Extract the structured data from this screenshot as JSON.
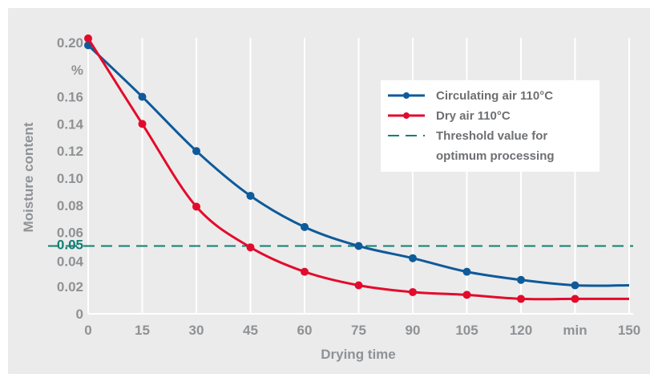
{
  "colors": {
    "background": "#ebebeb",
    "grid": "#ffffff",
    "circulating": "#0f5a9a",
    "dry": "#e30b2c",
    "threshold": "#0f7f72",
    "tick": "#8f9295"
  },
  "chart_data": {
    "type": "line",
    "xlabel": "Drying time",
    "ylabel": "Moisture content",
    "xlim": [
      0,
      150
    ],
    "ylim": [
      0,
      0.2
    ],
    "x_ticks": [
      0,
      15,
      30,
      45,
      60,
      75,
      90,
      105,
      120,
      135,
      150
    ],
    "x_tick_labels": [
      "0",
      "15",
      "30",
      "45",
      "60",
      "75",
      "90",
      "105",
      "120",
      "min",
      "150"
    ],
    "y_ticks": [
      0,
      0.02,
      0.04,
      0.05,
      0.06,
      0.08,
      0.1,
      0.12,
      0.14,
      0.16,
      0.18,
      0.2
    ],
    "y_tick_labels": [
      "0",
      "0.02",
      "0.04",
      "0.05",
      "0.06",
      "0.08",
      "0.10",
      "0.12",
      "0.14",
      "0.16",
      "%",
      "0.20"
    ],
    "highlighted_y_tick": "0.05",
    "grid": "vertical",
    "legend_position": "top-right",
    "series": [
      {
        "name": "Circulating air 110°C",
        "color": "#0f5a9a",
        "x": [
          0,
          15,
          30,
          45,
          60,
          75,
          90,
          105,
          120,
          135,
          150
        ],
        "y": [
          0.198,
          0.16,
          0.12,
          0.087,
          0.064,
          0.05,
          0.041,
          0.031,
          0.025,
          0.021,
          0.021
        ]
      },
      {
        "name": "Dry air 110°C",
        "color": "#e30b2c",
        "x": [
          0,
          15,
          30,
          45,
          60,
          75,
          90,
          105,
          120,
          135,
          150
        ],
        "y": [
          0.203,
          0.14,
          0.079,
          0.049,
          0.031,
          0.021,
          0.016,
          0.014,
          0.011,
          0.011,
          0.011
        ]
      }
    ],
    "threshold": {
      "y": 0.05,
      "name_line1": "Threshold value for",
      "name_line2": "optimum processing",
      "color": "#0f7f72"
    }
  }
}
